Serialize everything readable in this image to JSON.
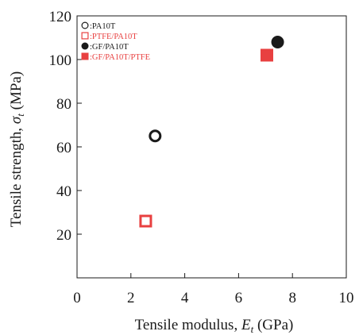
{
  "chart_data": {
    "type": "scatter",
    "xlabel": {
      "prefix": "Tensile modulus, ",
      "symbol": "E",
      "sub": "t",
      "suffix": " (GPa)"
    },
    "ylabel": {
      "prefix": "Tensile strength, ",
      "symbol": "σ",
      "sub": "t",
      "suffix": " (MPa)"
    },
    "xlim": [
      0,
      10
    ],
    "ylim": [
      0,
      120
    ],
    "x_ticks": [
      0,
      2,
      4,
      6,
      8,
      10
    ],
    "x_tick_labels": [
      "0",
      "2",
      "4",
      "6",
      "8",
      "10"
    ],
    "y_ticks": [
      20,
      40,
      60,
      80,
      100,
      120
    ],
    "y_tick_labels": [
      "20",
      "40",
      "60",
      "80",
      "100",
      "120"
    ],
    "grid": false,
    "legend_position": "top-left",
    "series": [
      {
        "name": ":PA10T",
        "marker": "circle-open",
        "color": "#1a1a1a",
        "text_color": "#1a1a1a",
        "x": [
          2.9
        ],
        "y": [
          65
        ]
      },
      {
        "name": ":PTFE/PA10T",
        "marker": "square-open",
        "color": "#e84040",
        "text_color": "#e84040",
        "x": [
          2.55
        ],
        "y": [
          26
        ]
      },
      {
        "name": ":GF/PA10T",
        "marker": "circle-filled",
        "color": "#1a1a1a",
        "text_color": "#1a1a1a",
        "x": [
          7.45
        ],
        "y": [
          108
        ]
      },
      {
        "name": ":GF/PA10T/PTFE",
        "marker": "square-filled",
        "color": "#e84040",
        "text_color": "#e84040",
        "x": [
          7.05
        ],
        "y": [
          102
        ]
      }
    ]
  }
}
